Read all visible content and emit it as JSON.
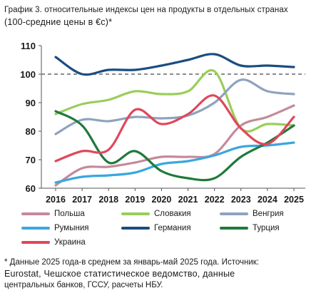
{
  "title_line1": "График 3. относительные индексы цен на продукты в отдельных странах",
  "title_line2": "(100-средние цены в €с)*",
  "footnote_line1": "* Данные 2025 года-в среднем за январь-май 2025 года. Источник:",
  "footnote_line2": "Eurostat, Чешское статистическое ведомство, данные",
  "footnote_line3": "центральных банков, ГССУ, расчеты НБУ.",
  "chart_data": {
    "type": "line",
    "title": "График 3. относительные индексы цен на продукты в отдельных странах (100-средние цены в €с)*",
    "x": [
      "2016",
      "2017",
      "2018",
      "2019",
      "2020",
      "2021",
      "2022",
      "2023",
      "2024",
      "2025"
    ],
    "ylim": [
      60,
      110
    ],
    "yticks": [
      60,
      70,
      80,
      90,
      100,
      110
    ],
    "reference_line": 100,
    "grid": false,
    "legend_position": "bottom",
    "series": [
      {
        "name": "Польша",
        "color": "#c48a9a",
        "values": [
          61,
          67,
          67.5,
          69,
          71,
          71,
          72,
          82,
          85,
          89
        ]
      },
      {
        "name": "Словакия",
        "color": "#9acd5a",
        "values": [
          86,
          89.5,
          91,
          94,
          93,
          94,
          101,
          81,
          82.5,
          82
        ]
      },
      {
        "name": "Венгрия",
        "color": "#8ea3bf",
        "values": [
          79,
          84,
          83.5,
          85,
          84.5,
          85.5,
          90,
          98,
          94,
          93
        ]
      },
      {
        "name": "Румыния",
        "color": "#3aa7de",
        "values": [
          62,
          64,
          64.5,
          65.5,
          68.5,
          69.5,
          71.5,
          74.5,
          75,
          76
        ]
      },
      {
        "name": "Германия",
        "color": "#1a4d80",
        "values": [
          106,
          100,
          101.5,
          101.5,
          103,
          105,
          107,
          103,
          103,
          102.5
        ]
      },
      {
        "name": "Турция",
        "color": "#1f7a3a",
        "values": [
          87,
          82,
          69,
          73,
          66,
          63.5,
          63.5,
          71,
          76,
          82
        ]
      },
      {
        "name": "Украина",
        "color": "#e0475b",
        "values": [
          69.5,
          73,
          73.5,
          87.5,
          82.5,
          86,
          92.5,
          81,
          75.5,
          85
        ]
      }
    ]
  }
}
